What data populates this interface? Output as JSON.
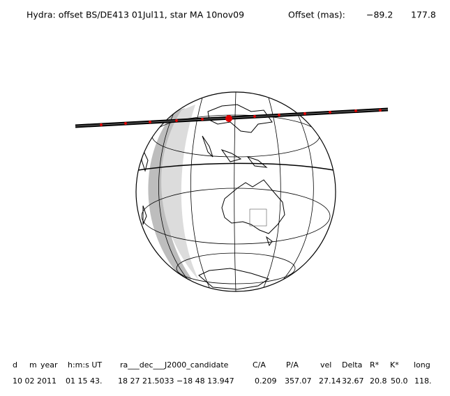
{
  "header": {
    "title": "Hydra: offset BS/DE413 01Jul11, star MA 10nov09",
    "offset_label": "Offset (mas):",
    "offset_x": "−89.2",
    "offset_y": "177.8"
  },
  "table": {
    "columns": [
      "d",
      "m",
      "year",
      "h:m:s UT",
      "ra___dec___J2000_candidate",
      "C/A",
      "P/A",
      "vel",
      "Delta",
      "R*",
      "K*",
      "long"
    ],
    "row": [
      "10 02 2011",
      "01 15 43.",
      "18 27 21.5033 −18 48 13.947",
      "0.209",
      "357.07",
      "27.14",
      "32.67",
      "20.8",
      "50.0",
      "118."
    ]
  }
}
